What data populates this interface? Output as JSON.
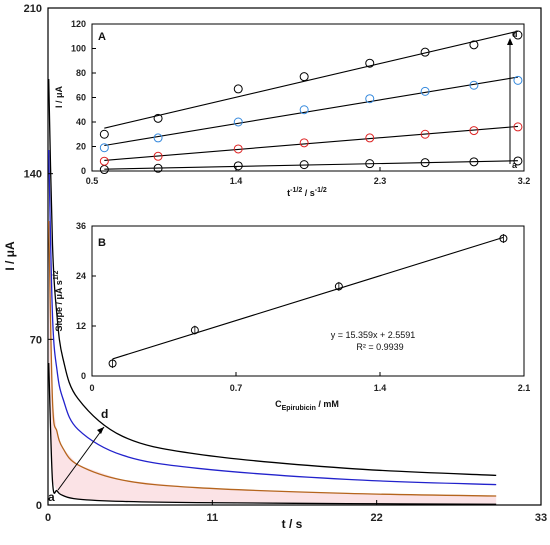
{
  "chart_data": [
    {
      "id": "main",
      "type": "line",
      "title": "",
      "xlabel": "t / s",
      "ylabel": "I / μA",
      "xlim": [
        0,
        33
      ],
      "ylim": [
        0,
        210
      ],
      "xticks": [
        0,
        11,
        22,
        33
      ],
      "yticks": [
        0,
        70,
        140,
        210
      ],
      "arrow_labels": {
        "start": "a",
        "end": "d"
      },
      "series": [
        {
          "color": "#000000",
          "x": [
            0.05,
            0.3,
            0.6,
            1.0,
            2.0,
            5.0,
            10.0,
            20.0,
            30.0
          ],
          "y": [
            60,
            10,
            6,
            4,
            2.5,
            1.5,
            1.0,
            0.6,
            0.3
          ]
        },
        {
          "color": "#b5651d",
          "x": [
            0.05,
            0.3,
            0.6,
            1.0,
            2.0,
            5.0,
            10.0,
            20.0,
            30.0
          ],
          "y": [
            120,
            44,
            31,
            24,
            17,
            10.5,
            7.3,
            4.9,
            3.8
          ]
        },
        {
          "color": "#2222cc",
          "x": [
            0.05,
            0.3,
            0.6,
            1.0,
            2.0,
            5.0,
            10.0,
            20.0,
            30.0
          ],
          "y": [
            150,
            80,
            57,
            45,
            32,
            21,
            15.5,
            10.8,
            8.6
          ]
        },
        {
          "color": "#000000",
          "x": [
            0.05,
            0.3,
            0.6,
            1.0,
            2.0,
            5.0,
            10.0,
            20.0,
            30.0
          ],
          "y": [
            180,
            110,
            80,
            62,
            45,
            29,
            21.5,
            15.5,
            12.5
          ]
        }
      ]
    },
    {
      "id": "inset_a",
      "type": "scatter",
      "panel_label": "A",
      "xlabel": "t",
      "xlabel_sup": "-1/2",
      "xlabel_mid": " / s",
      "xlabel_sup2": "-1/2",
      "ylabel": "I / μA",
      "xlim": [
        0.5,
        3.2
      ],
      "ylim": [
        0,
        120
      ],
      "xticks": [
        "0.5",
        "1.4",
        "2.3",
        "3.2"
      ],
      "yticks": [
        "0",
        "20",
        "40",
        "60",
        "80",
        "100",
        "120"
      ],
      "arrow_labels": {
        "start": "a",
        "end": "d"
      },
      "x": [
        0.577,
        0.913,
        1.414,
        1.826,
        2.236,
        2.582,
        2.887,
        3.162
      ],
      "series": [
        {
          "color": "#000000",
          "y": [
            1.2,
            2.2,
            4.2,
            5.2,
            6.0,
            6.8,
            7.5,
            8.2
          ]
        },
        {
          "color": "#dd2222",
          "y": [
            8,
            12,
            18,
            23,
            27,
            30,
            33,
            36
          ]
        },
        {
          "color": "#3388dd",
          "y": [
            19,
            27,
            40,
            50,
            59,
            65,
            70,
            74
          ]
        },
        {
          "color": "#000000",
          "y": [
            30,
            43,
            67,
            77,
            88,
            97,
            103,
            111
          ]
        }
      ]
    },
    {
      "id": "inset_b",
      "type": "scatter",
      "panel_label": "B",
      "xlabel": "C",
      "xlabel_sub": "Epirubicin",
      "xlabel_tail": " / mM",
      "ylabel": "Slope / μA s",
      "ylabel_sup": "1/2",
      "xlim": [
        0,
        2.1
      ],
      "ylim": [
        0,
        36
      ],
      "xticks": [
        "0",
        "0.7",
        "1.4",
        "2.1"
      ],
      "yticks": [
        "0",
        "12",
        "24",
        "36"
      ],
      "x": [
        0.1,
        0.5,
        1.2,
        2.0
      ],
      "y": [
        3.0,
        11.0,
        21.5,
        33.0
      ],
      "fit": {
        "slope": 15.359,
        "intercept": 2.5591,
        "x_range": [
          0.1,
          2.0
        ]
      },
      "equation": "y = 15.359x + 2.5591",
      "r2": "R² = 0.9939"
    }
  ]
}
